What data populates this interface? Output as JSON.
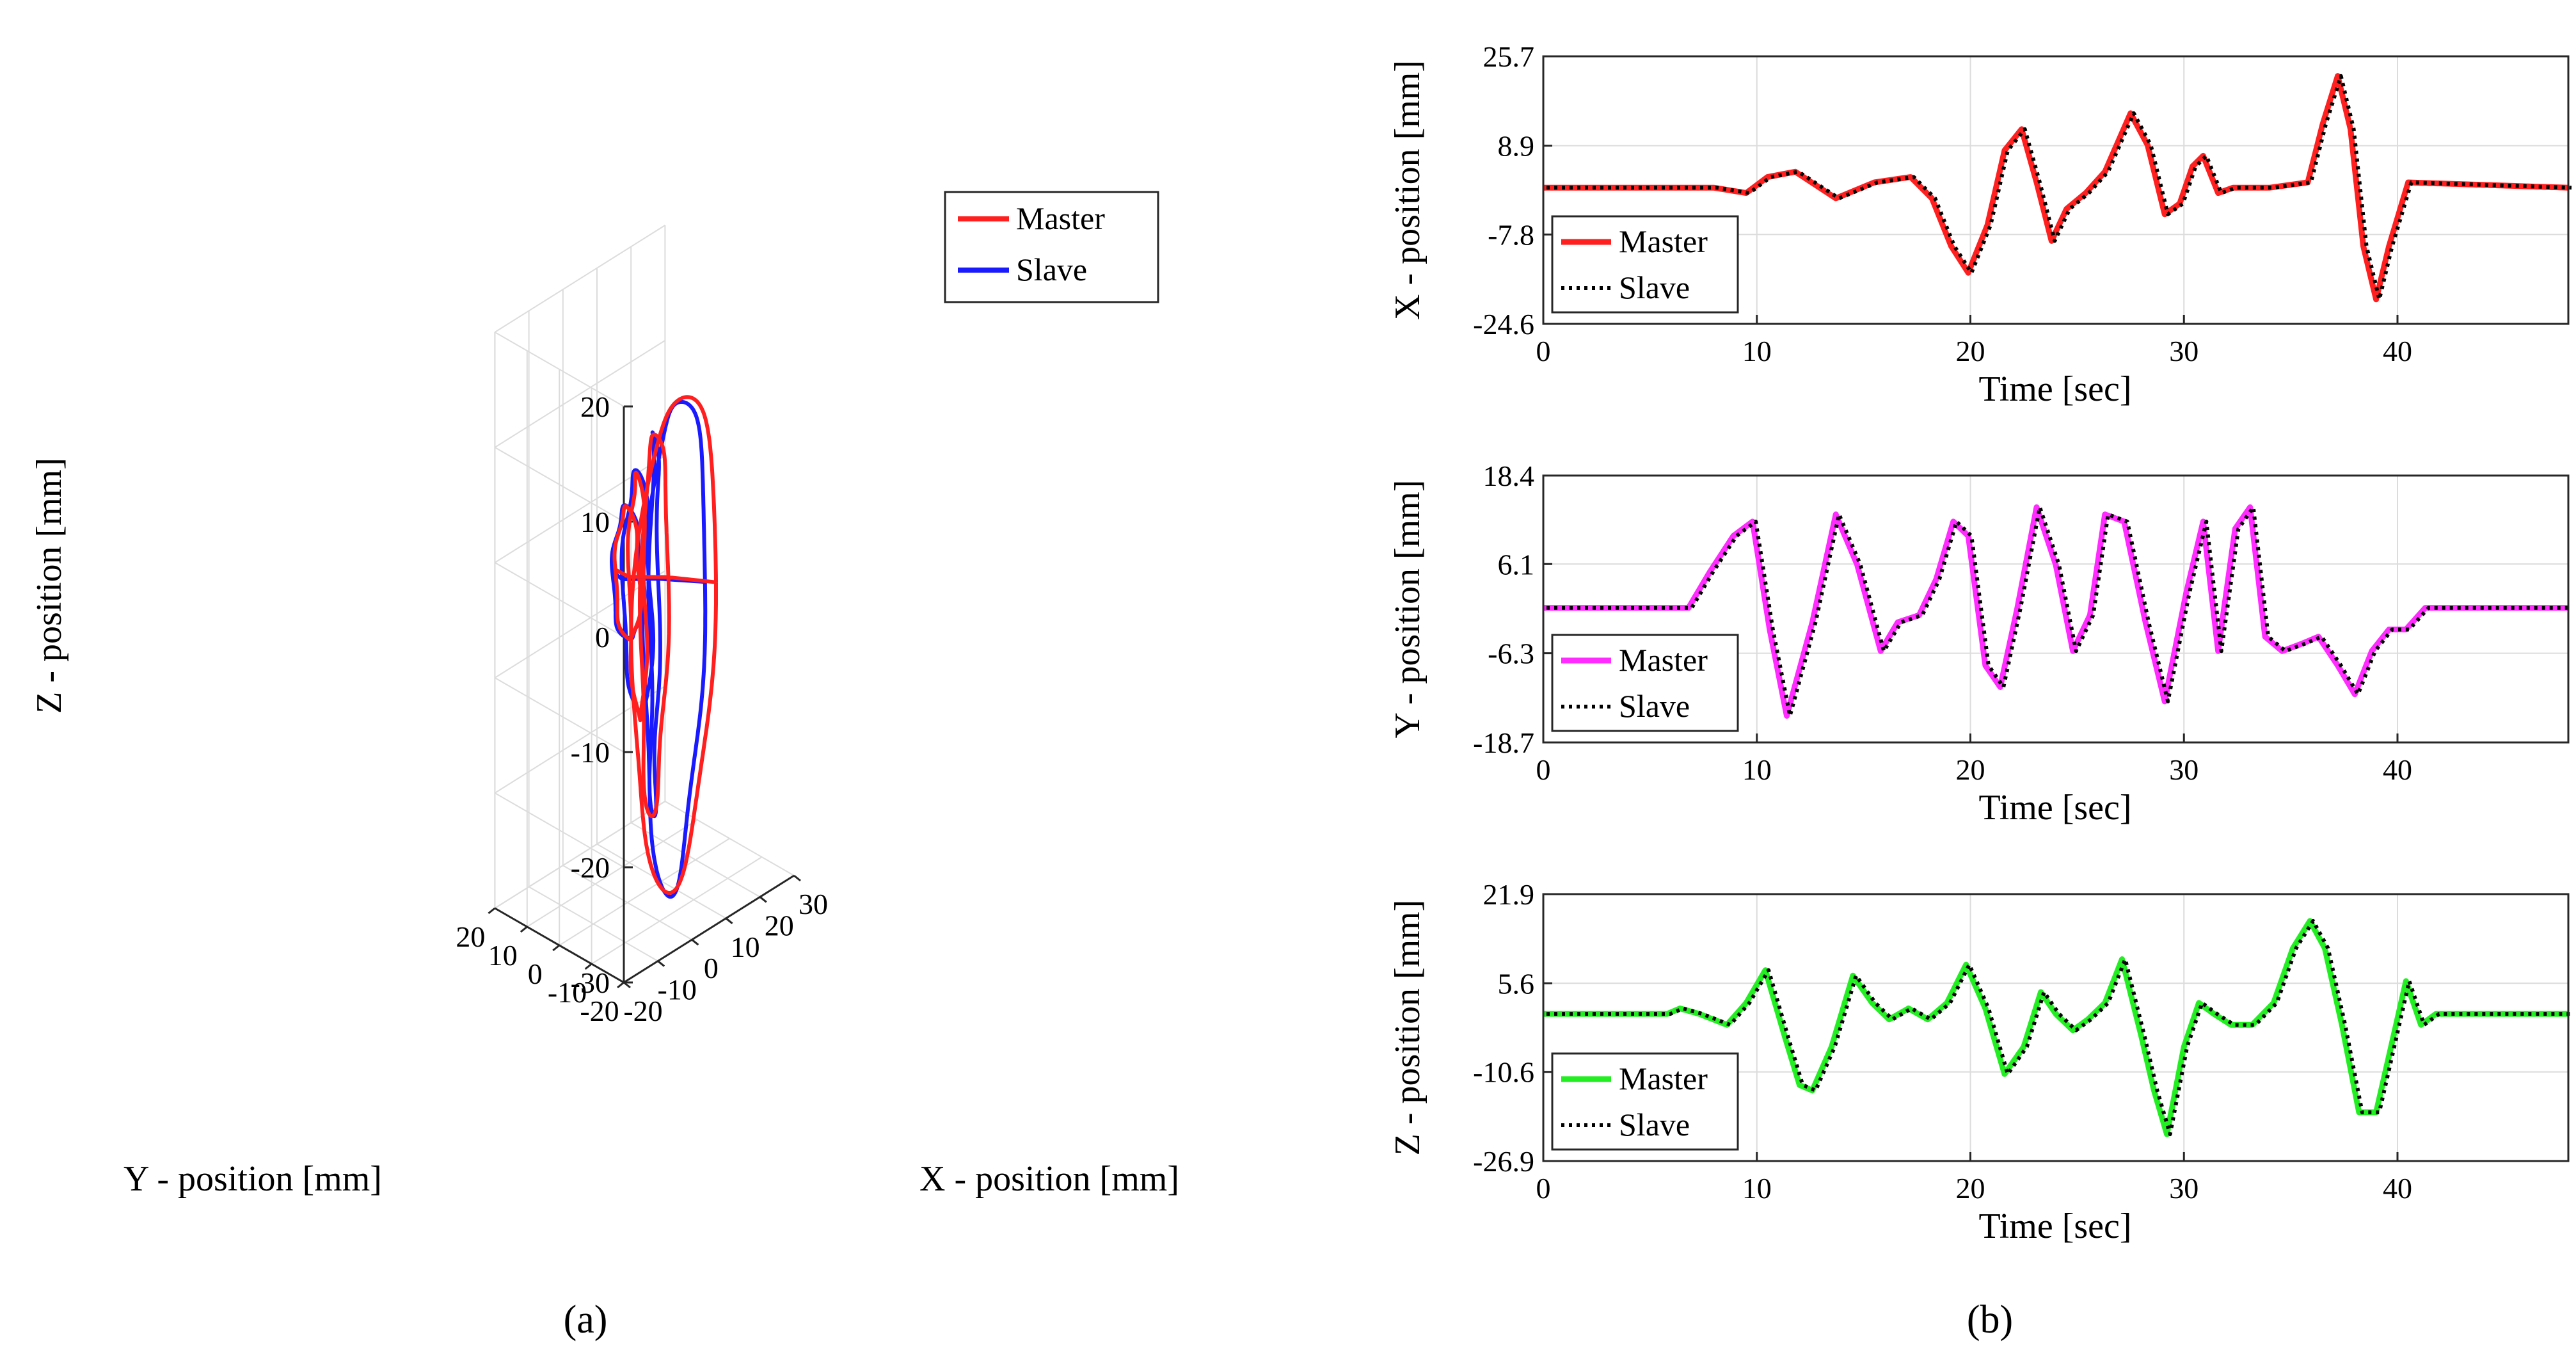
{
  "panel_labels": [
    "(a)",
    "(b)"
  ],
  "colors": {
    "master_3d": "#ff1f1f",
    "slave_3d": "#1a1aff",
    "x_master": "#ff1f1f",
    "y_master": "#ff2bff",
    "z_master": "#22ee22",
    "slave": "#000000"
  },
  "chart_data": [
    {
      "type": "line",
      "plot": "3d",
      "xlabel": "X - position [mm]",
      "ylabel": "Y - position [mm]",
      "zlabel": "Z - position [mm]",
      "xlim": [
        -20,
        30
      ],
      "ylim": [
        -20,
        20
      ],
      "zlim": [
        -30,
        20
      ],
      "x_ticks": [
        "-20",
        "-10",
        "0",
        "10",
        "20",
        "30"
      ],
      "y_ticks": [
        "-20",
        "-10",
        "0",
        "10",
        "20"
      ],
      "z_ticks": [
        "-30",
        "-20",
        "-10",
        "0",
        "10",
        "20"
      ],
      "grid": true,
      "legend": "top-right",
      "series": [
        {
          "name": "Master",
          "style": "solid"
        },
        {
          "name": "Slave",
          "style": "solid"
        }
      ],
      "loops": [
        {
          "cx": 10,
          "cy": -4,
          "cz": -8,
          "r": 22,
          "tilt": 0.55
        },
        {
          "cx": 6,
          "cy": -2,
          "cz": -6,
          "r": 17,
          "tilt": 0.85
        },
        {
          "cx": 3,
          "cy": 0,
          "cz": -4,
          "r": 11,
          "tilt": 1.25
        },
        {
          "cx": 1,
          "cy": 1,
          "cz": -2,
          "r": 6,
          "tilt": 1.6
        }
      ]
    },
    {
      "type": "line",
      "xlabel": "Time [sec]",
      "ylabel": "X - position [mm]",
      "xlim": [
        0,
        48
      ],
      "ylim": [
        -24.6,
        25.7
      ],
      "x_ticks": [
        "0",
        "10",
        "20",
        "30",
        "40"
      ],
      "y_ticks": [
        "25.7",
        "8.9",
        "-7.8",
        "-24.6"
      ],
      "grid": true,
      "legend": "bottom-left",
      "series": [
        {
          "name": "Master",
          "style": "solid"
        },
        {
          "name": "Slave",
          "style": "dotted"
        }
      ],
      "x": [
        0,
        7,
        8,
        9.5,
        10.5,
        11.8,
        13.7,
        15.5,
        17.2,
        18.2,
        19.1,
        19.9,
        20.8,
        21.6,
        22.4,
        23.1,
        23.8,
        24.5,
        25.4,
        26.3,
        27.5,
        28.3,
        29.1,
        29.8,
        30.4,
        30.9,
        31.6,
        32.3,
        34,
        35.8,
        36.5,
        37.2,
        37.8,
        38.4,
        39.0,
        39.6,
        40.5,
        48
      ],
      "values": [
        1,
        1,
        1,
        0,
        3,
        4,
        -1,
        2,
        3,
        -1,
        -10,
        -15,
        -6,
        8,
        12,
        2,
        -9,
        -3,
        0,
        4,
        15,
        9,
        -4,
        -2,
        5,
        7,
        0,
        1,
        1,
        2,
        13,
        22,
        12,
        -10,
        -20,
        -10,
        2,
        1
      ]
    },
    {
      "type": "line",
      "xlabel": "Time [sec]",
      "ylabel": "Y - position [mm]",
      "xlim": [
        0,
        48
      ],
      "ylim": [
        -18.7,
        18.4
      ],
      "x_ticks": [
        "0",
        "10",
        "20",
        "30",
        "40"
      ],
      "y_ticks": [
        "18.4",
        "6.1",
        "-6.3",
        "-18.7"
      ],
      "grid": true,
      "legend": "bottom-left",
      "series": [
        {
          "name": "Master",
          "style": "solid"
        },
        {
          "name": "Slave",
          "style": "dotted"
        }
      ],
      "x": [
        0,
        6.8,
        7.8,
        8.9,
        9.8,
        10.6,
        11.4,
        12.6,
        13.7,
        14.7,
        15.8,
        16.6,
        17.6,
        18.4,
        19.2,
        19.9,
        20.7,
        21.4,
        22.2,
        23.1,
        24.0,
        24.8,
        25.6,
        26.3,
        27.2,
        28.2,
        29.1,
        30.1,
        30.9,
        31.6,
        32.4,
        33.1,
        33.8,
        34.6,
        35.5,
        36.3,
        37.2,
        38.0,
        38.8,
        39.6,
        40.4,
        41.3,
        48
      ],
      "values": [
        0,
        0,
        5,
        10,
        12,
        -3,
        -15,
        -2,
        13,
        6,
        -6,
        -2,
        -1,
        4,
        12,
        10,
        -8,
        -11,
        0,
        14,
        6,
        -6,
        -1,
        13,
        12,
        -2,
        -13,
        2,
        12,
        -6,
        11,
        14,
        -4,
        -6,
        -5,
        -4,
        -8,
        -12,
        -6,
        -3,
        -3,
        0,
        0
      ]
    },
    {
      "type": "line",
      "xlabel": "Time [sec]",
      "ylabel": "Z - position [mm]",
      "xlim": [
        0,
        48
      ],
      "ylim": [
        -26.9,
        21.9
      ],
      "x_ticks": [
        "0",
        "10",
        "20",
        "30",
        "40"
      ],
      "y_ticks": [
        "21.9",
        "5.6",
        "-10.6",
        "-26.9"
      ],
      "grid": true,
      "legend": "bottom-left",
      "series": [
        {
          "name": "Master",
          "style": "solid"
        },
        {
          "name": "Slave",
          "style": "dotted"
        }
      ],
      "x": [
        0,
        5.8,
        6.4,
        7.3,
        8.6,
        9.5,
        10.4,
        11.3,
        12.0,
        12.6,
        13.5,
        14.5,
        15.4,
        16.2,
        17.1,
        18.0,
        18.9,
        19.8,
        20.7,
        21.6,
        22.5,
        23.3,
        24.0,
        24.8,
        25.5,
        26.3,
        27.1,
        28.0,
        28.6,
        29.2,
        30.0,
        30.7,
        31.4,
        32.2,
        33.2,
        34.2,
        35.1,
        35.9,
        36.6,
        37.4,
        38.2,
        39.0,
        39.7,
        40.4,
        41.1,
        41.8,
        48
      ],
      "values": [
        0,
        0,
        1,
        0,
        -2,
        2,
        8,
        -4,
        -13,
        -14,
        -6,
        7,
        2,
        -1,
        1,
        -1,
        2,
        9,
        1,
        -11,
        -6,
        4,
        0,
        -3,
        -1,
        2,
        10,
        -4,
        -14,
        -22,
        -6,
        2,
        0,
        -2,
        -2,
        2,
        12,
        17,
        12,
        -2,
        -18,
        -18,
        -6,
        6,
        -2,
        0,
        0
      ]
    }
  ]
}
